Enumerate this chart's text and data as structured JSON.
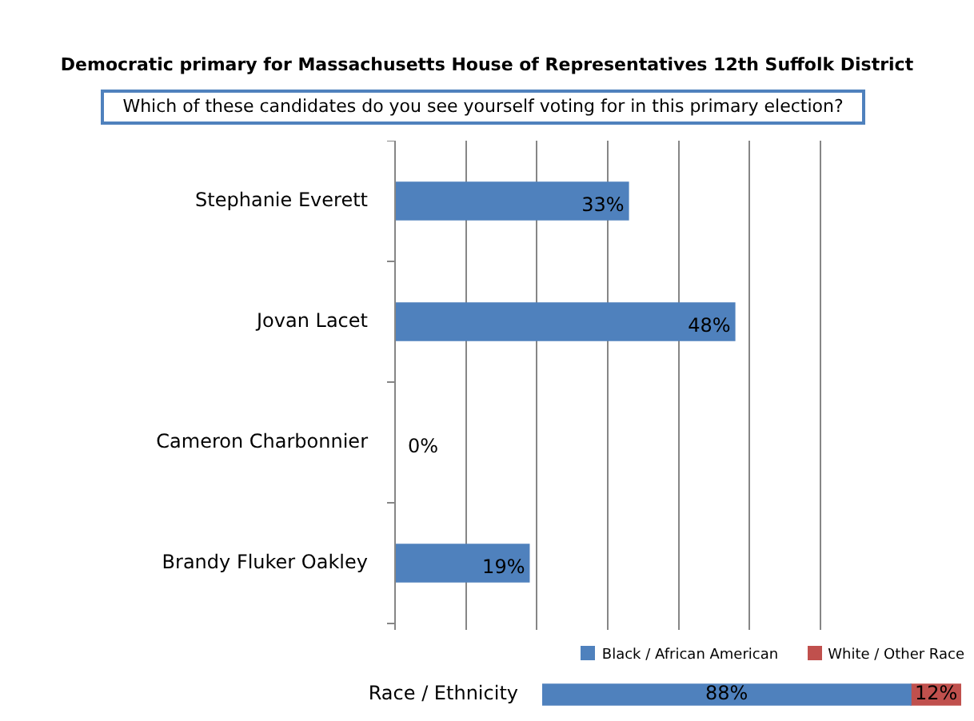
{
  "chart_data": [
    {
      "type": "bar",
      "orientation": "horizontal",
      "title": "Democratic primary  for Massachusetts  House of Representatives 12th  Suffolk District",
      "subtitle": "Which of these candidates do you see yourself voting for in this primary election?",
      "categories": [
        "Stephanie Everett",
        "Jovan Lacet",
        "Cameron Charbonnier",
        "Brandy Fluker Oakley"
      ],
      "values": [
        33,
        48,
        0,
        19
      ],
      "color": "#4f81bd",
      "value_labels": [
        "33%",
        "48%",
        "0%",
        "19%"
      ],
      "xlim": [
        0,
        60
      ],
      "xticks": [
        {
          "value": 0,
          "label": null
        },
        {
          "value": 10,
          "label": null
        },
        {
          "value": 20,
          "label": null
        },
        {
          "value": 30,
          "label": null
        },
        {
          "value": 40,
          "label": null
        },
        {
          "value": 50,
          "label": null
        },
        {
          "value": 60,
          "label": null
        }
      ],
      "grid": "x",
      "tick_labels": "y",
      "legend": false
    },
    {
      "type": "bar",
      "orientation": "horizontal",
      "stacked": true,
      "categories": [
        "Race / Ethnicity"
      ],
      "series": [
        {
          "name": "Black / African American",
          "color": "#4f81bd",
          "values": [
            88
          ],
          "value_labels": [
            "88%"
          ]
        },
        {
          "name": "White / Other Race",
          "color": "#c0504d",
          "values": [
            12
          ],
          "value_labels": [
            "12%"
          ]
        }
      ],
      "xlim": [
        0,
        100
      ],
      "tick_labels": "y",
      "grid": false,
      "legend": "top right"
    }
  ]
}
